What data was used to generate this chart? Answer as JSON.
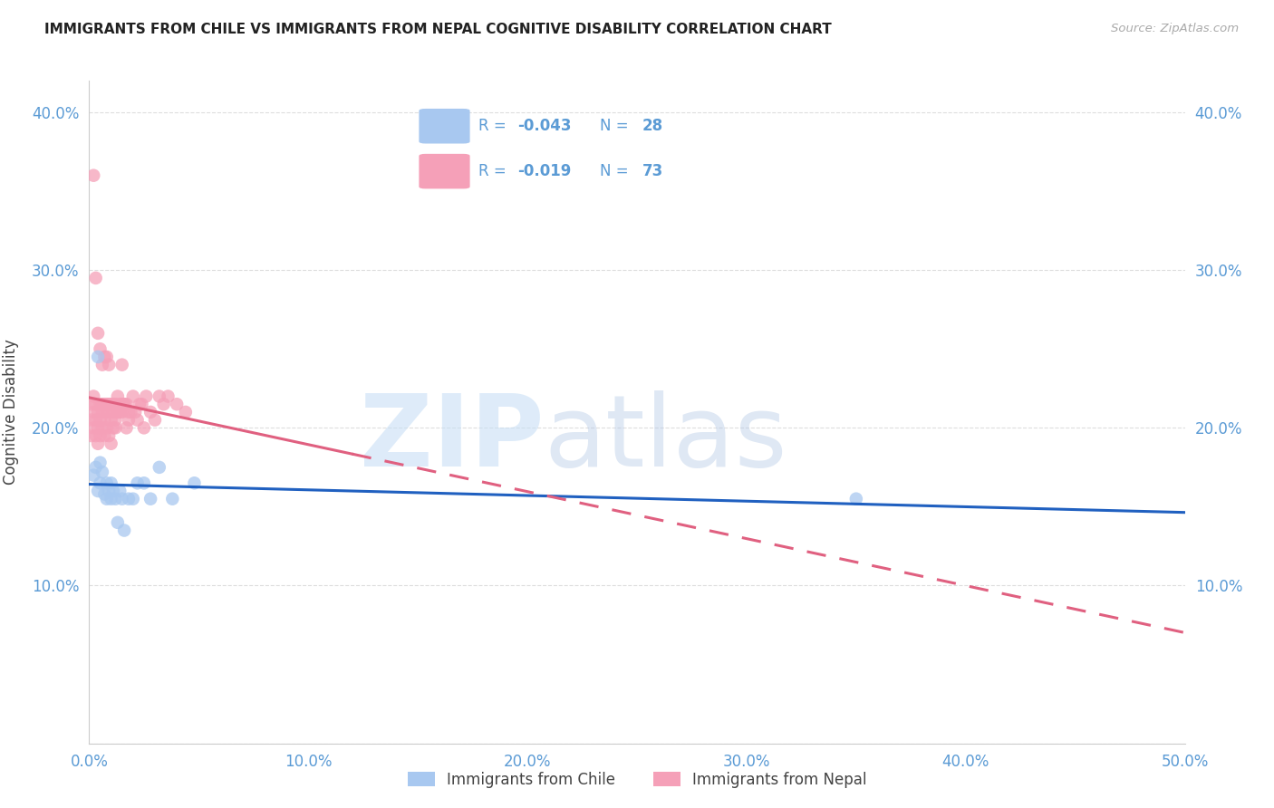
{
  "title": "IMMIGRANTS FROM CHILE VS IMMIGRANTS FROM NEPAL COGNITIVE DISABILITY CORRELATION CHART",
  "source": "Source: ZipAtlas.com",
  "ylabel_label": "Cognitive Disability",
  "xlim": [
    0.0,
    0.5
  ],
  "ylim": [
    0.0,
    0.42
  ],
  "xticks": [
    0.0,
    0.1,
    0.2,
    0.3,
    0.4,
    0.5
  ],
  "yticks": [
    0.0,
    0.1,
    0.2,
    0.3,
    0.4
  ],
  "legend_r_chile": "-0.043",
  "legend_n_chile": "28",
  "legend_r_nepal": "-0.019",
  "legend_n_nepal": "73",
  "chile_color": "#a8c8f0",
  "nepal_color": "#f5a0b8",
  "chile_line_color": "#2060c0",
  "nepal_line_color": "#e06080",
  "tick_color": "#5b9bd5",
  "text_color": "#222222",
  "grid_color": "#dddddd",
  "legend_text_color": "#5b9bd5",
  "chile_x": [
    0.002,
    0.003,
    0.004,
    0.005,
    0.005,
    0.006,
    0.007,
    0.008,
    0.008,
    0.009,
    0.01,
    0.01,
    0.011,
    0.012,
    0.013,
    0.014,
    0.015,
    0.016,
    0.018,
    0.02,
    0.022,
    0.025,
    0.028,
    0.032,
    0.038,
    0.048,
    0.35,
    0.004
  ],
  "chile_y": [
    0.17,
    0.175,
    0.16,
    0.178,
    0.165,
    0.172,
    0.158,
    0.155,
    0.165,
    0.16,
    0.165,
    0.155,
    0.16,
    0.155,
    0.14,
    0.16,
    0.155,
    0.135,
    0.155,
    0.155,
    0.165,
    0.165,
    0.155,
    0.175,
    0.155,
    0.165,
    0.155,
    0.245
  ],
  "nepal_x": [
    0.001,
    0.001,
    0.001,
    0.002,
    0.002,
    0.002,
    0.003,
    0.003,
    0.003,
    0.004,
    0.004,
    0.004,
    0.005,
    0.005,
    0.005,
    0.006,
    0.006,
    0.006,
    0.007,
    0.007,
    0.007,
    0.008,
    0.008,
    0.008,
    0.009,
    0.009,
    0.009,
    0.01,
    0.01,
    0.01,
    0.011,
    0.011,
    0.011,
    0.012,
    0.012,
    0.012,
    0.013,
    0.013,
    0.013,
    0.014,
    0.014,
    0.015,
    0.015,
    0.015,
    0.016,
    0.016,
    0.017,
    0.017,
    0.018,
    0.018,
    0.019,
    0.02,
    0.021,
    0.022,
    0.023,
    0.024,
    0.025,
    0.026,
    0.028,
    0.03,
    0.032,
    0.034,
    0.036,
    0.04,
    0.044,
    0.002,
    0.003,
    0.004,
    0.005,
    0.006,
    0.007,
    0.008,
    0.009
  ],
  "nepal_y": [
    0.205,
    0.215,
    0.195,
    0.21,
    0.2,
    0.22,
    0.205,
    0.215,
    0.195,
    0.2,
    0.21,
    0.19,
    0.205,
    0.215,
    0.195,
    0.21,
    0.2,
    0.215,
    0.205,
    0.215,
    0.195,
    0.21,
    0.2,
    0.215,
    0.21,
    0.195,
    0.215,
    0.205,
    0.215,
    0.19,
    0.21,
    0.215,
    0.2,
    0.205,
    0.215,
    0.2,
    0.21,
    0.22,
    0.21,
    0.21,
    0.215,
    0.24,
    0.21,
    0.215,
    0.215,
    0.215,
    0.2,
    0.215,
    0.205,
    0.21,
    0.21,
    0.22,
    0.21,
    0.205,
    0.215,
    0.215,
    0.2,
    0.22,
    0.21,
    0.205,
    0.22,
    0.215,
    0.22,
    0.215,
    0.21,
    0.36,
    0.295,
    0.26,
    0.25,
    0.24,
    0.245,
    0.245,
    0.24
  ]
}
